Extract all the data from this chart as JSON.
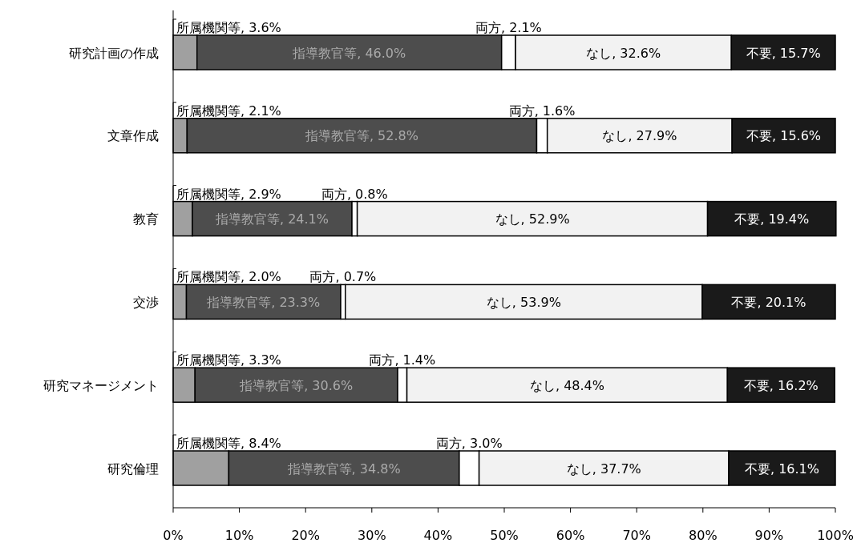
{
  "chart_data": {
    "type": "bar",
    "orientation": "horizontal",
    "stacked": true,
    "categories": [
      "研究計画の作成",
      "文章作成",
      "教育",
      "交渉",
      "研究マネージメント",
      "研究倫理"
    ],
    "series": [
      {
        "color": "#a0a0a0",
        "values": [
          3.6,
          2.1,
          2.9,
          2.0,
          3.3,
          8.4
        ],
        "value_labels": [
          "所属機関等, 3.6%",
          "所属機関等, 2.1%",
          "所属機関等, 2.9%",
          "所属機関等, 2.0%",
          "所属機関等, 3.3%",
          "所属機関等, 8.4%"
        ]
      },
      {
        "color": "#4d4d4d",
        "values": [
          46.0,
          52.8,
          24.1,
          23.3,
          30.6,
          34.8
        ],
        "value_labels": [
          "指導教官等, 46.0%",
          "指導教官等, 52.8%",
          "指導教官等, 24.1%",
          "指導教官等, 23.3%",
          "指導教官等, 30.6%",
          "指導教官等, 34.8%"
        ]
      },
      {
        "color": "#ffffff",
        "values": [
          2.1,
          1.6,
          0.8,
          0.7,
          1.4,
          3.0
        ],
        "value_labels": [
          "両方, 2.1%",
          "両方, 1.6%",
          "両方, 0.8%",
          "両方, 0.7%",
          "両方, 1.4%",
          "両方, 3.0%"
        ]
      },
      {
        "color": "#f2f2f2",
        "values": [
          32.6,
          27.9,
          52.9,
          53.9,
          48.4,
          37.7
        ],
        "value_labels": [
          "なし, 32.6%",
          "なし, 27.9%",
          "なし, 52.9%",
          "なし, 53.9%",
          "なし, 48.4%",
          "なし, 37.7%"
        ]
      },
      {
        "color": "#1a1a1a",
        "values": [
          15.7,
          15.6,
          19.4,
          20.1,
          16.2,
          16.1
        ],
        "value_labels": [
          "不要, 15.7%",
          "不要, 15.6%",
          "不要, 19.4%",
          "不要, 20.1%",
          "不要, 16.2%",
          "不要, 16.1%"
        ]
      }
    ],
    "xlim": [
      0,
      100
    ],
    "xticks": [
      {
        "value": 0,
        "label": "0%"
      },
      {
        "value": 10,
        "label": "10%"
      },
      {
        "value": 20,
        "label": "20%"
      },
      {
        "value": 30,
        "label": "30%"
      },
      {
        "value": 40,
        "label": "40%"
      },
      {
        "value": 50,
        "label": "50%"
      },
      {
        "value": 60,
        "label": "60%"
      },
      {
        "value": 70,
        "label": "70%"
      },
      {
        "value": 80,
        "label": "80%"
      },
      {
        "value": 90,
        "label": "90%"
      },
      {
        "value": 100,
        "label": "100%"
      }
    ],
    "grid": false
  }
}
